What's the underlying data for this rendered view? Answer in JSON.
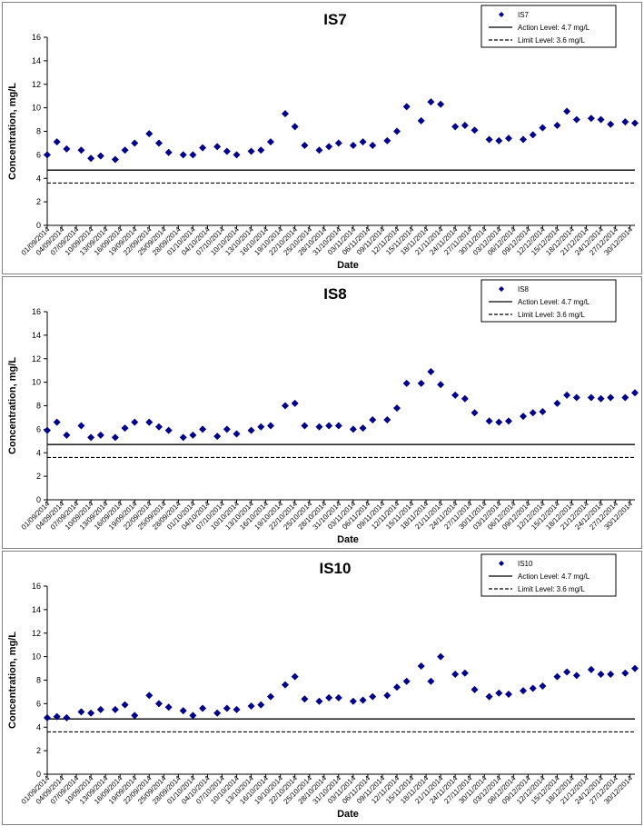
{
  "colors": {
    "marker": "#00008b",
    "action": "#000000",
    "limit": "#000000",
    "panel_border": "#808080"
  },
  "chart_data": [
    {
      "type": "scatter",
      "title": "IS7",
      "xlabel": "Date",
      "ylabel": "Concentration, mg/L",
      "ylim": [
        0,
        16
      ],
      "yticks": [
        "0",
        "2",
        "4",
        "6",
        "8",
        "10",
        "12",
        "14",
        "16"
      ],
      "xlim": [
        "01/09/2014",
        "31/12/2014"
      ],
      "x_tick_labels": [
        "01/09/2014",
        "04/09/2014",
        "07/09/2014",
        "10/09/2014",
        "13/09/2014",
        "16/09/2014",
        "19/09/2014",
        "22/09/2014",
        "25/09/2014",
        "28/09/2014",
        "01/10/2014",
        "04/10/2014",
        "07/10/2014",
        "10/10/2014",
        "13/10/2014",
        "16/10/2014",
        "19/10/2014",
        "22/10/2014",
        "25/10/2014",
        "28/10/2014",
        "31/10/2014",
        "03/11/2014",
        "06/11/2014",
        "09/11/2014",
        "12/11/2014",
        "15/11/2014",
        "18/11/2014",
        "21/11/2014",
        "24/11/2014",
        "27/11/2014",
        "30/11/2014",
        "03/12/2014",
        "06/12/2014",
        "09/12/2014",
        "12/12/2014",
        "15/12/2014",
        "18/12/2014",
        "21/12/2014",
        "24/12/2014",
        "27/12/2014",
        "30/12/2014"
      ],
      "legend": {
        "position": "top-right",
        "series": "IS7",
        "action": "Action Level: 4.7 mg/L",
        "limit": "Limit Level: 3.6 mg/L"
      },
      "action_level": 4.7,
      "limit_level": 3.6,
      "series": [
        {
          "name": "IS7",
          "x": [
            "01/09/2014",
            "03/09/2014",
            "05/09/2014",
            "08/09/2014",
            "10/09/2014",
            "12/09/2014",
            "15/09/2014",
            "17/09/2014",
            "19/09/2014",
            "22/09/2014",
            "24/09/2014",
            "26/09/2014",
            "29/09/2014",
            "01/10/2014",
            "03/10/2014",
            "06/10/2014",
            "08/10/2014",
            "10/10/2014",
            "13/10/2014",
            "15/10/2014",
            "17/10/2014",
            "20/10/2014",
            "22/10/2014",
            "24/10/2014",
            "27/10/2014",
            "29/10/2014",
            "31/10/2014",
            "03/11/2014",
            "05/11/2014",
            "07/11/2014",
            "10/11/2014",
            "12/11/2014",
            "14/11/2014",
            "17/11/2014",
            "19/11/2014",
            "21/11/2014",
            "24/11/2014",
            "26/11/2014",
            "28/11/2014",
            "01/12/2014",
            "03/12/2014",
            "05/12/2014",
            "08/12/2014",
            "10/12/2014",
            "12/12/2014",
            "15/12/2014",
            "17/12/2014",
            "19/12/2014",
            "22/12/2014",
            "24/12/2014",
            "26/12/2014",
            "29/12/2014",
            "31/12/2014"
          ],
          "y": [
            6.0,
            7.1,
            6.5,
            6.4,
            5.7,
            5.9,
            5.6,
            6.4,
            7.0,
            7.8,
            7.0,
            6.2,
            6.0,
            6.0,
            6.6,
            6.7,
            6.3,
            6.0,
            6.3,
            6.4,
            7.1,
            9.5,
            8.4,
            6.8,
            6.4,
            6.7,
            7.0,
            6.8,
            7.1,
            6.8,
            7.2,
            8.0,
            10.1,
            8.9,
            10.5,
            10.3,
            8.4,
            8.5,
            8.1,
            7.3,
            7.2,
            7.4,
            7.3,
            7.7,
            8.3,
            8.5,
            9.7,
            9.0,
            9.1,
            9.0,
            8.6,
            8.8,
            8.7
          ]
        }
      ]
    },
    {
      "type": "scatter",
      "title": "IS8",
      "xlabel": "Date",
      "ylabel": "Concentration, mg/L",
      "ylim": [
        0,
        16
      ],
      "yticks": [
        "0",
        "2",
        "4",
        "6",
        "8",
        "10",
        "12",
        "14",
        "16"
      ],
      "xlim": [
        "01/09/2014",
        "31/12/2014"
      ],
      "x_tick_labels": [
        "01/09/2014",
        "04/09/2014",
        "07/09/2014",
        "10/09/2014",
        "13/09/2014",
        "16/09/2014",
        "19/09/2014",
        "22/09/2014",
        "25/09/2014",
        "28/09/2014",
        "01/10/2014",
        "04/10/2014",
        "07/10/2014",
        "10/10/2014",
        "13/10/2014",
        "16/10/2014",
        "19/10/2014",
        "22/10/2014",
        "25/10/2014",
        "28/10/2014",
        "31/10/2014",
        "03/11/2014",
        "06/11/2014",
        "09/11/2014",
        "12/11/2014",
        "15/11/2014",
        "18/11/2014",
        "21/11/2014",
        "24/11/2014",
        "27/11/2014",
        "30/11/2014",
        "03/12/2014",
        "06/12/2014",
        "09/12/2014",
        "12/12/2014",
        "15/12/2014",
        "18/12/2014",
        "21/12/2014",
        "24/12/2014",
        "27/12/2014",
        "30/12/2014"
      ],
      "legend": {
        "position": "top-right",
        "series": "IS8",
        "action": "Action Level: 4.7 mg/L",
        "limit": "Limit Level: 3.6 mg/L"
      },
      "action_level": 4.7,
      "limit_level": 3.6,
      "series": [
        {
          "name": "IS8",
          "x": [
            "01/09/2014",
            "03/09/2014",
            "05/09/2014",
            "08/09/2014",
            "10/09/2014",
            "12/09/2014",
            "15/09/2014",
            "17/09/2014",
            "19/09/2014",
            "22/09/2014",
            "24/09/2014",
            "26/09/2014",
            "29/09/2014",
            "01/10/2014",
            "03/10/2014",
            "06/10/2014",
            "08/10/2014",
            "10/10/2014",
            "13/10/2014",
            "15/10/2014",
            "17/10/2014",
            "20/10/2014",
            "22/10/2014",
            "24/10/2014",
            "27/10/2014",
            "29/10/2014",
            "31/10/2014",
            "03/11/2014",
            "05/11/2014",
            "07/11/2014",
            "10/11/2014",
            "12/11/2014",
            "14/11/2014",
            "17/11/2014",
            "19/11/2014",
            "21/11/2014",
            "24/11/2014",
            "26/11/2014",
            "28/11/2014",
            "01/12/2014",
            "03/12/2014",
            "05/12/2014",
            "08/12/2014",
            "10/12/2014",
            "12/12/2014",
            "15/12/2014",
            "17/12/2014",
            "19/12/2014",
            "22/12/2014",
            "24/12/2014",
            "26/12/2014",
            "29/12/2014",
            "31/12/2014"
          ],
          "y": [
            5.9,
            6.6,
            5.5,
            6.3,
            5.3,
            5.5,
            5.3,
            6.1,
            6.6,
            6.6,
            6.2,
            5.9,
            5.3,
            5.5,
            6.0,
            5.4,
            6.0,
            5.6,
            5.9,
            6.2,
            6.3,
            8.0,
            8.2,
            6.3,
            6.2,
            6.3,
            6.3,
            6.0,
            6.1,
            6.8,
            6.8,
            7.8,
            9.9,
            9.9,
            10.9,
            9.8,
            8.9,
            8.6,
            7.4,
            6.7,
            6.6,
            6.7,
            7.1,
            7.4,
            7.5,
            8.2,
            8.9,
            8.7,
            8.7,
            8.6,
            8.7,
            8.7,
            9.1
          ]
        }
      ]
    },
    {
      "type": "scatter",
      "title": "IS10",
      "xlabel": "Date",
      "ylabel": "Concentration, mg/L",
      "ylim": [
        0,
        16
      ],
      "yticks": [
        "0",
        "2",
        "4",
        "6",
        "8",
        "10",
        "12",
        "14",
        "16"
      ],
      "xlim": [
        "01/09/2014",
        "31/12/2014"
      ],
      "x_tick_labels": [
        "01/09/2014",
        "04/09/2014",
        "07/09/2014",
        "10/09/2014",
        "13/09/2014",
        "16/09/2014",
        "19/09/2014",
        "22/09/2014",
        "25/09/2014",
        "28/09/2014",
        "01/10/2014",
        "04/10/2014",
        "07/10/2014",
        "10/10/2014",
        "13/10/2014",
        "16/10/2014",
        "19/10/2014",
        "22/10/2014",
        "25/10/2014",
        "28/10/2014",
        "31/10/2014",
        "03/11/2014",
        "06/11/2014",
        "09/11/2014",
        "12/11/2014",
        "15/11/2014",
        "18/11/2014",
        "21/11/2014",
        "24/11/2014",
        "27/11/2014",
        "30/11/2014",
        "03/12/2014",
        "06/12/2014",
        "09/12/2014",
        "12/12/2014",
        "15/12/2014",
        "18/12/2014",
        "21/12/2014",
        "24/12/2014",
        "27/12/2014",
        "30/12/2014"
      ],
      "legend": {
        "position": "top-right",
        "series": "IS10",
        "action": "Action Level: 4.7 mg/L",
        "limit": "Limit Level: 3.6 mg/L"
      },
      "action_level": 4.7,
      "limit_level": 3.6,
      "series": [
        {
          "name": "IS10",
          "x": [
            "01/09/2014",
            "03/09/2014",
            "05/09/2014",
            "08/09/2014",
            "10/09/2014",
            "12/09/2014",
            "15/09/2014",
            "17/09/2014",
            "19/09/2014",
            "22/09/2014",
            "24/09/2014",
            "26/09/2014",
            "29/09/2014",
            "01/10/2014",
            "03/10/2014",
            "06/10/2014",
            "08/10/2014",
            "10/10/2014",
            "13/10/2014",
            "15/10/2014",
            "17/10/2014",
            "20/10/2014",
            "22/10/2014",
            "24/10/2014",
            "27/10/2014",
            "29/10/2014",
            "31/10/2014",
            "03/11/2014",
            "05/11/2014",
            "07/11/2014",
            "10/11/2014",
            "12/11/2014",
            "14/11/2014",
            "17/11/2014",
            "19/11/2014",
            "21/11/2014",
            "24/11/2014",
            "26/11/2014",
            "28/11/2014",
            "01/12/2014",
            "03/12/2014",
            "05/12/2014",
            "08/12/2014",
            "10/12/2014",
            "12/12/2014",
            "15/12/2014",
            "17/12/2014",
            "19/12/2014",
            "22/12/2014",
            "24/12/2014",
            "26/12/2014",
            "29/12/2014",
            "31/12/2014"
          ],
          "y": [
            4.8,
            4.9,
            4.8,
            5.3,
            5.2,
            5.5,
            5.5,
            5.9,
            5.0,
            6.7,
            6.0,
            5.7,
            5.4,
            5.0,
            5.6,
            5.2,
            5.6,
            5.5,
            5.8,
            5.9,
            6.6,
            7.6,
            8.3,
            6.4,
            6.2,
            6.5,
            6.5,
            6.2,
            6.3,
            6.6,
            6.7,
            7.4,
            7.9,
            9.2,
            7.9,
            10.0,
            8.5,
            8.6,
            7.2,
            6.6,
            6.9,
            6.8,
            7.1,
            7.3,
            7.5,
            8.3,
            8.7,
            8.4,
            8.9,
            8.5,
            8.5,
            8.6,
            9.0
          ]
        }
      ]
    }
  ]
}
